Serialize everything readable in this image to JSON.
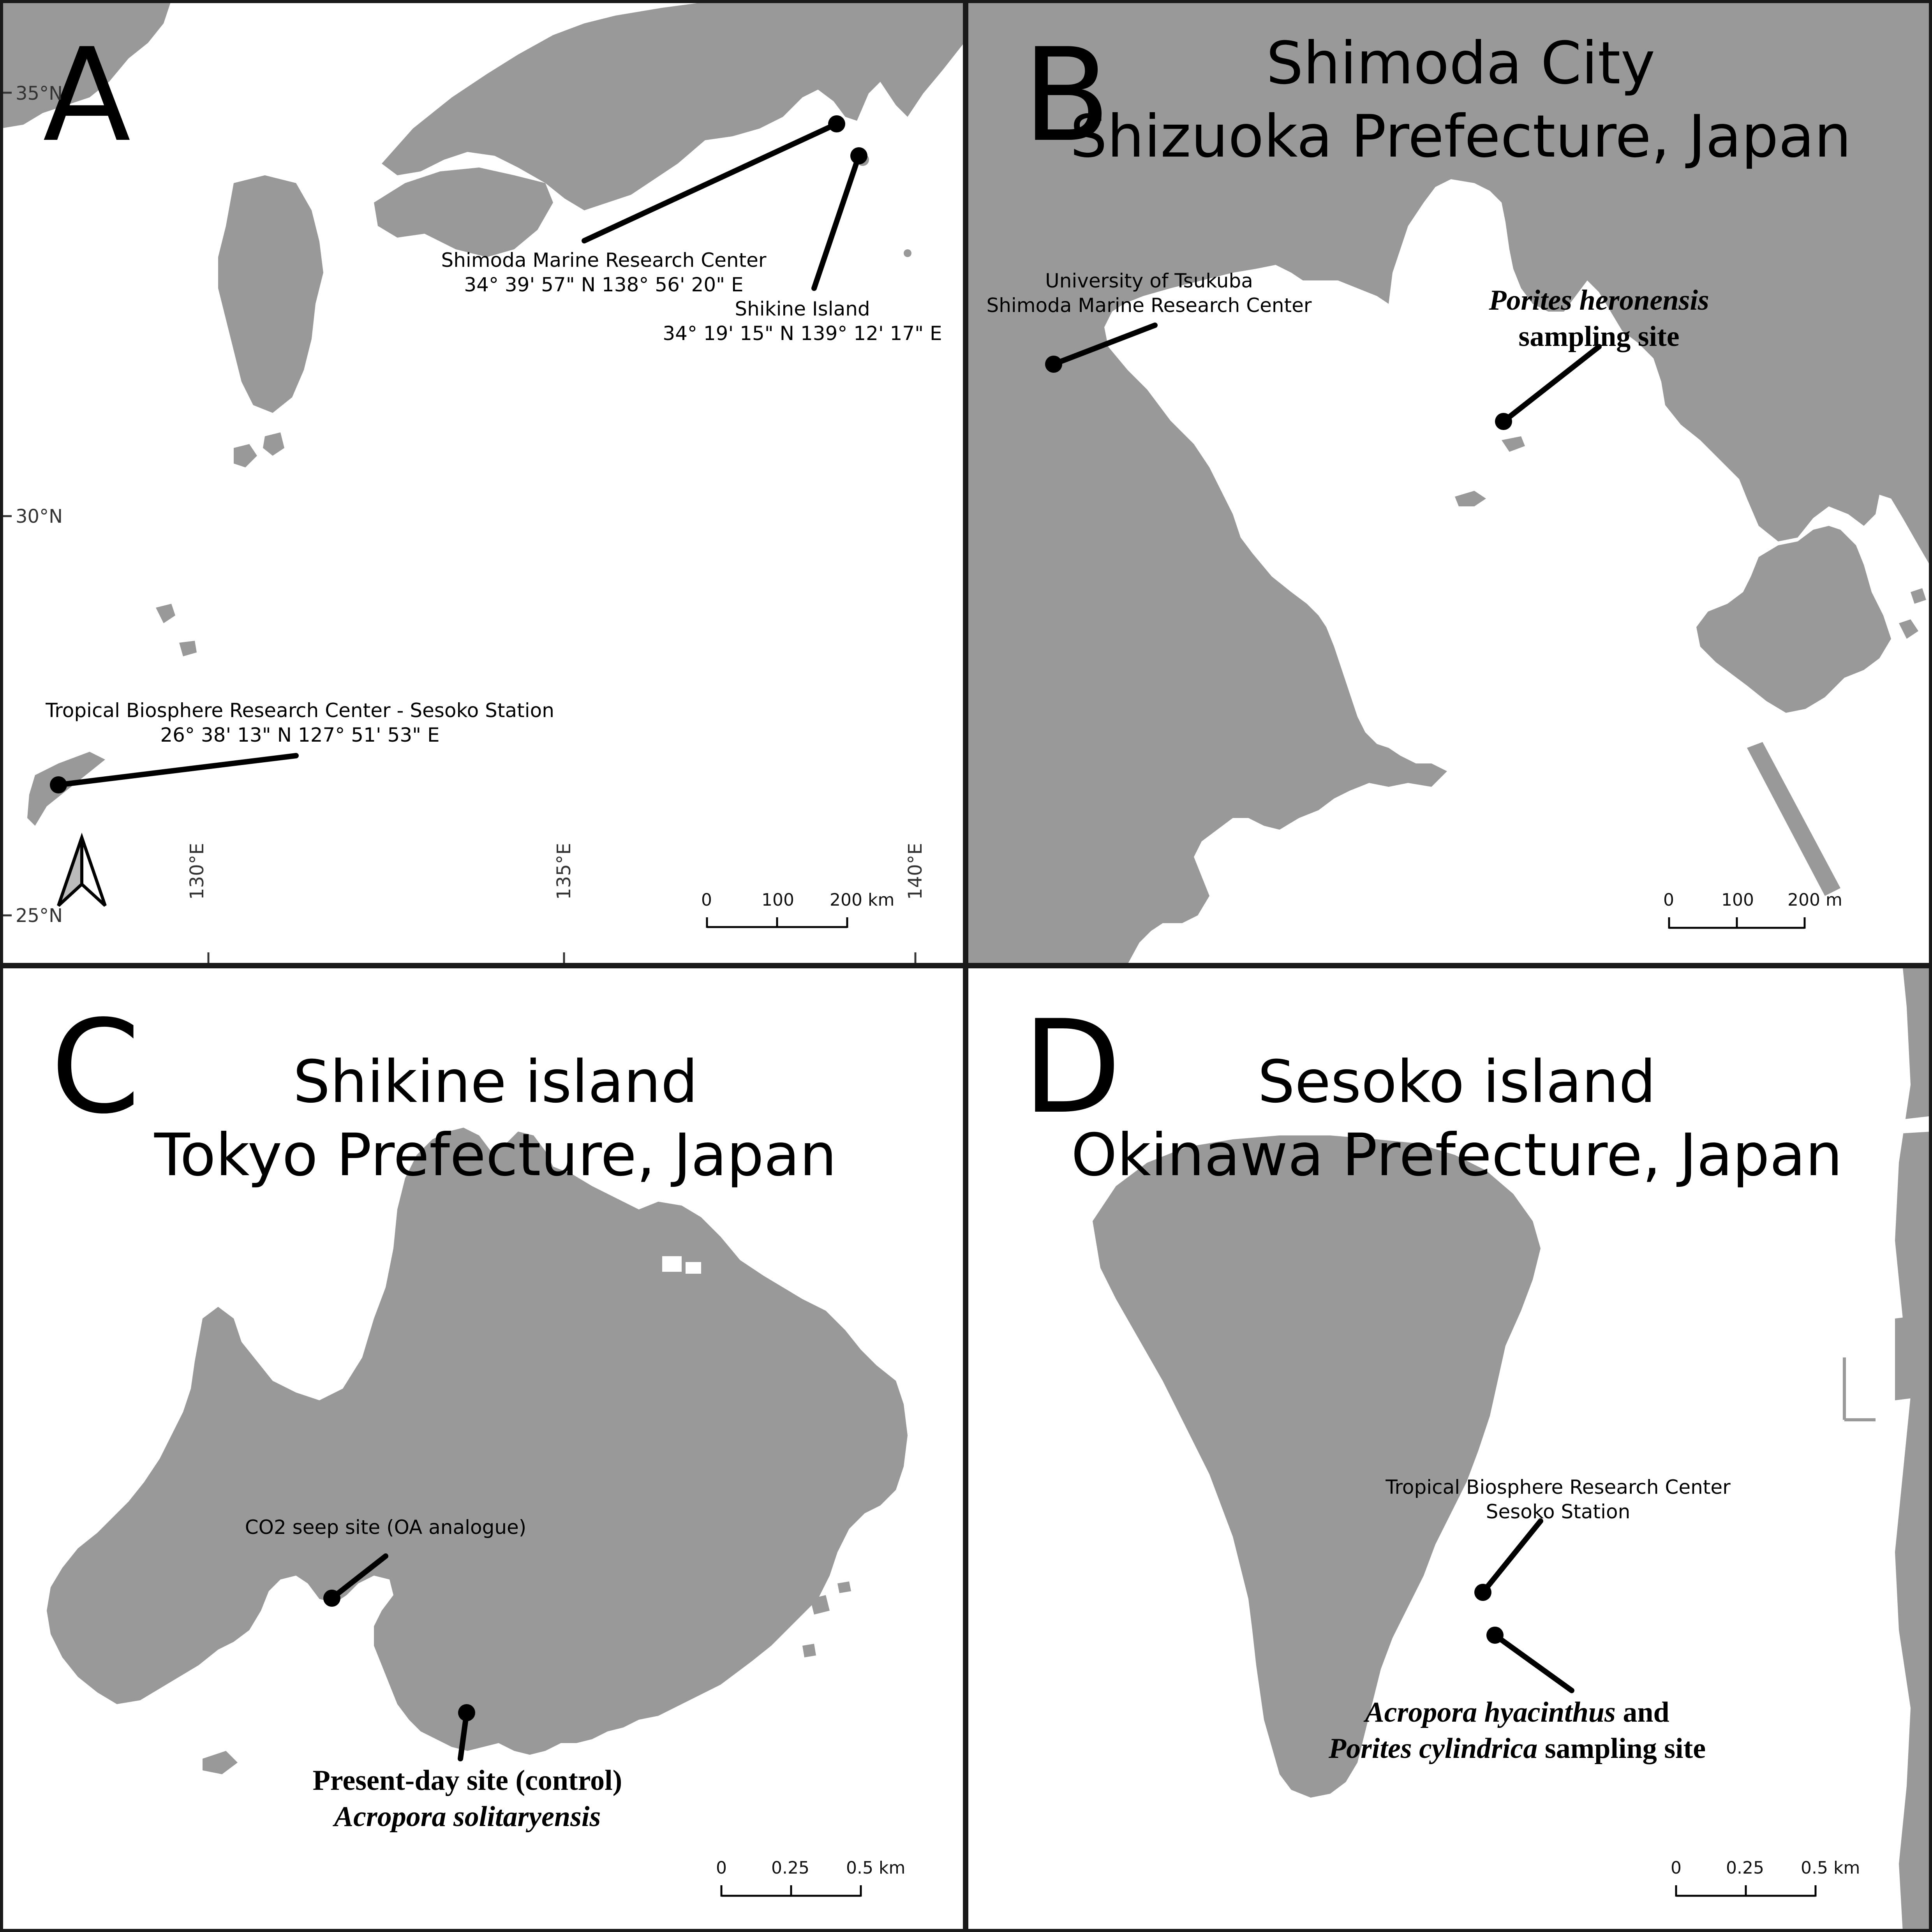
{
  "colors": {
    "land": "#999999",
    "sea": "#ffffff",
    "border": "#1a1a1a",
    "marker": "#000000"
  },
  "panels": {
    "a": {
      "letter": "A",
      "graticule": {
        "lat_labels": [
          "35°N",
          "30°N",
          "25°N"
        ],
        "lon_labels": [
          "130°E",
          "135°E",
          "140°E"
        ]
      },
      "sites": [
        {
          "name": "Shimoda Marine Research Center",
          "coords": "34° 39' 57\" N 138° 56' 20\" E"
        },
        {
          "name": "Shikine Island",
          "coords": "34° 19' 15\" N 139° 12' 17\" E"
        },
        {
          "name": "Tropical Biosphere Research Center - Sesoko Station",
          "coords": "26° 38' 13\" N 127° 51' 53\" E"
        }
      ],
      "north_arrow": "north-arrow-icon",
      "scale": {
        "labels": [
          "0",
          "100",
          "200 km"
        ]
      }
    },
    "b": {
      "letter": "B",
      "title_line1": "Shimoda City",
      "title_line2": "Shizuoka Prefecture, Japan",
      "station_line1": "University of Tsukuba",
      "station_line2": "Shimoda Marine Research Center",
      "sampling_species": "Porites heronensis",
      "sampling_suffix": "sampling site",
      "scale": {
        "labels": [
          "0",
          "100",
          "200 m"
        ]
      }
    },
    "c": {
      "letter": "C",
      "title_line1": "Shikine island",
      "title_line2": "Tokyo Prefecture, Japan",
      "seep_label": "CO2 seep site (OA analogue)",
      "control_label": "Present-day site (control)",
      "control_species": "Acropora solitaryensis",
      "scale": {
        "labels": [
          "0",
          "0.25",
          "0.5 km"
        ]
      }
    },
    "d": {
      "letter": "D",
      "title_line1": "Sesoko island",
      "title_line2": "Okinawa Prefecture, Japan",
      "station_line1": "Tropical Biosphere Research Center",
      "station_line2": "Sesoko Station",
      "species_1": "Acropora hyacinthus",
      "conjunction": "and",
      "species_2": "Porites cylindrica",
      "sampling_suffix": "sampling site",
      "scale": {
        "labels": [
          "0",
          "0.25",
          "0.5 km"
        ]
      }
    }
  }
}
